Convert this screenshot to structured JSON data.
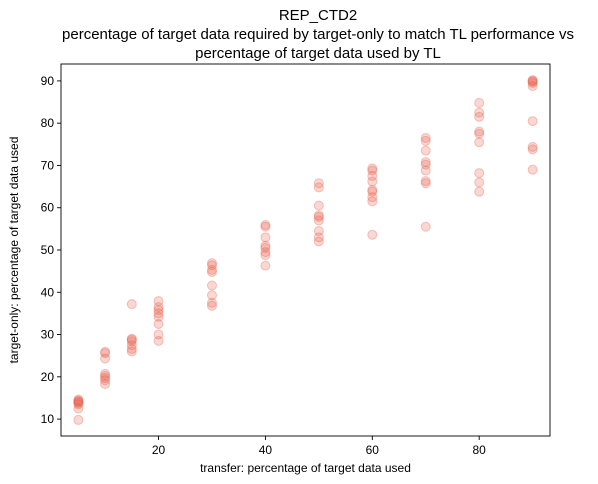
{
  "chart_data": {
    "type": "scatter",
    "title_lines": [
      "REP_CTD2",
      "percentage of target data required by target-only to match TL performance vs",
      "percentage of target data used by TL"
    ],
    "xlabel": "transfer: percentage of target data used",
    "ylabel": "target-only: percentage of target data used",
    "xlim": [
      1.75,
      93.25
    ],
    "ylim": [
      6,
      94
    ],
    "xticks": [
      20,
      40,
      60,
      80
    ],
    "yticks": [
      10,
      20,
      30,
      40,
      50,
      60,
      70,
      80,
      90
    ],
    "grid": false,
    "marker_color": "#e8604c",
    "marker_alpha": 0.25,
    "points": [
      {
        "x": 5,
        "y": 9.8
      },
      {
        "x": 5,
        "y": 12.5
      },
      {
        "x": 5,
        "y": 13.5
      },
      {
        "x": 5,
        "y": 13.8
      },
      {
        "x": 5,
        "y": 14.0
      },
      {
        "x": 5,
        "y": 14.2
      },
      {
        "x": 5,
        "y": 14.4
      },
      {
        "x": 5,
        "y": 14.6
      },
      {
        "x": 10,
        "y": 18.3
      },
      {
        "x": 10,
        "y": 19.2
      },
      {
        "x": 10,
        "y": 19.7
      },
      {
        "x": 10,
        "y": 20.2
      },
      {
        "x": 10,
        "y": 20.7
      },
      {
        "x": 10,
        "y": 24.3
      },
      {
        "x": 10,
        "y": 25.6
      },
      {
        "x": 10,
        "y": 25.9
      },
      {
        "x": 15,
        "y": 26.0
      },
      {
        "x": 15,
        "y": 26.6
      },
      {
        "x": 15,
        "y": 27.5
      },
      {
        "x": 15,
        "y": 28.4
      },
      {
        "x": 15,
        "y": 28.8
      },
      {
        "x": 15,
        "y": 29.0
      },
      {
        "x": 15,
        "y": 37.2
      },
      {
        "x": 20,
        "y": 28.5
      },
      {
        "x": 20,
        "y": 30.0
      },
      {
        "x": 20,
        "y": 32.5
      },
      {
        "x": 20,
        "y": 34.2
      },
      {
        "x": 20,
        "y": 35.0
      },
      {
        "x": 20,
        "y": 35.8
      },
      {
        "x": 20,
        "y": 36.5
      },
      {
        "x": 20,
        "y": 37.9
      },
      {
        "x": 30,
        "y": 36.8
      },
      {
        "x": 30,
        "y": 37.5
      },
      {
        "x": 30,
        "y": 39.3
      },
      {
        "x": 30,
        "y": 41.6
      },
      {
        "x": 30,
        "y": 44.8
      },
      {
        "x": 30,
        "y": 45.3
      },
      {
        "x": 30,
        "y": 46.4
      },
      {
        "x": 30,
        "y": 46.9
      },
      {
        "x": 40,
        "y": 46.3
      },
      {
        "x": 40,
        "y": 48.8
      },
      {
        "x": 40,
        "y": 49.5
      },
      {
        "x": 40,
        "y": 50.5
      },
      {
        "x": 40,
        "y": 51.0
      },
      {
        "x": 40,
        "y": 53.0
      },
      {
        "x": 40,
        "y": 55.5
      },
      {
        "x": 40,
        "y": 55.9
      },
      {
        "x": 50,
        "y": 52.0
      },
      {
        "x": 50,
        "y": 53.0
      },
      {
        "x": 50,
        "y": 54.5
      },
      {
        "x": 50,
        "y": 57.0
      },
      {
        "x": 50,
        "y": 57.8
      },
      {
        "x": 50,
        "y": 58.2
      },
      {
        "x": 50,
        "y": 60.5
      },
      {
        "x": 50,
        "y": 64.8
      },
      {
        "x": 50,
        "y": 65.8
      },
      {
        "x": 60,
        "y": 53.6
      },
      {
        "x": 60,
        "y": 61.5
      },
      {
        "x": 60,
        "y": 62.5
      },
      {
        "x": 60,
        "y": 63.8
      },
      {
        "x": 60,
        "y": 64.2
      },
      {
        "x": 60,
        "y": 66.2
      },
      {
        "x": 60,
        "y": 67.5
      },
      {
        "x": 60,
        "y": 68.8
      },
      {
        "x": 60,
        "y": 69.3
      },
      {
        "x": 70,
        "y": 55.5
      },
      {
        "x": 70,
        "y": 65.8
      },
      {
        "x": 70,
        "y": 66.3
      },
      {
        "x": 70,
        "y": 68.8
      },
      {
        "x": 70,
        "y": 70.2
      },
      {
        "x": 70,
        "y": 70.8
      },
      {
        "x": 70,
        "y": 73.5
      },
      {
        "x": 70,
        "y": 75.8
      },
      {
        "x": 70,
        "y": 76.5
      },
      {
        "x": 80,
        "y": 63.8
      },
      {
        "x": 80,
        "y": 66.0
      },
      {
        "x": 80,
        "y": 68.2
      },
      {
        "x": 80,
        "y": 75.5
      },
      {
        "x": 80,
        "y": 77.5
      },
      {
        "x": 80,
        "y": 78.0
      },
      {
        "x": 80,
        "y": 81.5
      },
      {
        "x": 80,
        "y": 82.5
      },
      {
        "x": 80,
        "y": 84.8
      },
      {
        "x": 90,
        "y": 69.0
      },
      {
        "x": 90,
        "y": 73.8
      },
      {
        "x": 90,
        "y": 74.4
      },
      {
        "x": 90,
        "y": 80.5
      },
      {
        "x": 90,
        "y": 88.8
      },
      {
        "x": 90,
        "y": 89.5
      },
      {
        "x": 90,
        "y": 89.8
      },
      {
        "x": 90,
        "y": 90.0
      },
      {
        "x": 90,
        "y": 90.2
      }
    ]
  }
}
